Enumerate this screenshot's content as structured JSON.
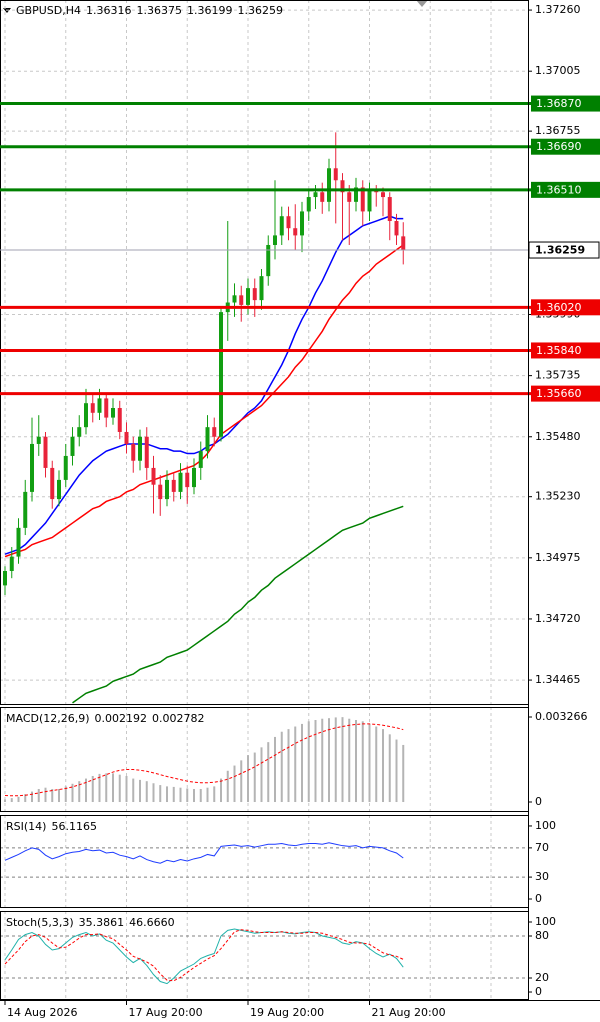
{
  "chart_data": [
    {
      "type": "candlestick",
      "symbol": "GBPUSD,H4",
      "categories": [
        "14 Aug 2026",
        null,
        null,
        null,
        null,
        null,
        null,
        null,
        null,
        null,
        null,
        null,
        null,
        null,
        null,
        null,
        null,
        null,
        "17 Aug 20:00",
        null,
        null,
        null,
        null,
        null,
        null,
        null,
        null,
        null,
        null,
        null,
        null,
        null,
        null,
        null,
        null,
        null,
        "19 Aug 20:00",
        null,
        null,
        null,
        null,
        null,
        null,
        null,
        null,
        null,
        null,
        null,
        null,
        null,
        null,
        null,
        null,
        null,
        "21 Aug 20:00",
        null,
        null,
        null,
        null,
        null
      ],
      "open": [
        1.3486,
        1.3492,
        1.3498,
        1.351,
        1.3525,
        1.3545,
        1.3548,
        1.3535,
        1.3522,
        1.353,
        1.354,
        1.3548,
        1.3552,
        1.3562,
        1.3558,
        1.3564,
        1.3556,
        1.356,
        1.355,
        1.3545,
        1.3538,
        1.3548,
        1.3535,
        1.3528,
        1.3522,
        1.353,
        1.3525,
        1.3533,
        1.3527,
        1.3535,
        1.3542,
        1.3552,
        1.3548,
        1.36,
        1.3604,
        1.3607,
        1.3603,
        1.361,
        1.3605,
        1.3615,
        1.3628,
        1.3632,
        1.364,
        1.3635,
        1.3632,
        1.3642,
        1.3648,
        1.365,
        1.3646,
        1.366,
        1.3655,
        1.365,
        1.3646,
        1.3652,
        1.3642,
        1.3651,
        1.365,
        1.3648,
        1.3638,
        1.36316
      ],
      "high": [
        1.3494,
        1.3502,
        1.3514,
        1.353,
        1.3556,
        1.3557,
        1.355,
        1.3538,
        1.3534,
        1.3545,
        1.3552,
        1.3557,
        1.3568,
        1.3566,
        1.3568,
        1.3566,
        1.3564,
        1.3563,
        1.3554,
        1.3548,
        1.3551,
        1.3552,
        1.354,
        1.3532,
        1.3534,
        1.3533,
        1.3537,
        1.3536,
        1.3539,
        1.3546,
        1.3557,
        1.3556,
        1.3602,
        1.3638,
        1.3612,
        1.3611,
        1.3614,
        1.3614,
        1.3618,
        1.3632,
        1.3655,
        1.3644,
        1.3644,
        1.3645,
        1.3646,
        1.3651,
        1.3653,
        1.3654,
        1.3664,
        1.3675,
        1.3658,
        1.3653,
        1.3656,
        1.3655,
        1.3654,
        1.3653,
        1.3652,
        1.365,
        1.3641,
        1.36375
      ],
      "low": [
        1.3482,
        1.3489,
        1.3495,
        1.3507,
        1.3521,
        1.354,
        1.3531,
        1.3518,
        1.3519,
        1.3527,
        1.3536,
        1.3544,
        1.3549,
        1.3554,
        1.3555,
        1.3552,
        1.3553,
        1.3547,
        1.3541,
        1.3533,
        1.3534,
        1.353,
        1.3516,
        1.3515,
        1.3519,
        1.3521,
        1.3522,
        1.352,
        1.3524,
        1.353,
        1.3539,
        1.3544,
        1.3546,
        1.3588,
        1.3598,
        1.3596,
        1.3599,
        1.3598,
        1.3601,
        1.3611,
        1.3622,
        1.3628,
        1.363,
        1.3626,
        1.3625,
        1.3638,
        1.3643,
        1.3641,
        1.3642,
        1.3637,
        1.363,
        1.3628,
        1.3642,
        1.3636,
        1.3638,
        1.3644,
        1.364,
        1.363,
        1.3628,
        1.36199
      ],
      "close": [
        1.3492,
        1.3498,
        1.351,
        1.3525,
        1.3545,
        1.3548,
        1.3535,
        1.3522,
        1.353,
        1.354,
        1.3548,
        1.3552,
        1.3562,
        1.3558,
        1.3564,
        1.3556,
        1.356,
        1.355,
        1.3545,
        1.3538,
        1.3548,
        1.3535,
        1.3528,
        1.3522,
        1.353,
        1.3525,
        1.3533,
        1.3527,
        1.3535,
        1.3542,
        1.3552,
        1.3548,
        1.36,
        1.3604,
        1.3607,
        1.3603,
        1.361,
        1.3605,
        1.3615,
        1.3628,
        1.3632,
        1.364,
        1.3635,
        1.3632,
        1.3642,
        1.3648,
        1.365,
        1.3646,
        1.366,
        1.3655,
        1.365,
        1.3646,
        1.3652,
        1.3642,
        1.3651,
        1.365,
        1.3648,
        1.3638,
        1.3632,
        1.36259
      ],
      "up_color": "#129e12",
      "down_color": "#e8233a",
      "series": [
        {
          "color": "#0000ff",
          "values": [
            1.3499,
            1.35,
            1.3501,
            1.3503,
            1.3506,
            1.3509,
            1.3512,
            1.3516,
            1.352,
            1.3524,
            1.3528,
            1.3532,
            1.3535,
            1.3538,
            1.354,
            1.3542,
            1.3543,
            1.3544,
            1.3545,
            1.3545,
            1.3545,
            1.3545,
            1.3544,
            1.3543,
            1.3543,
            1.3542,
            1.3542,
            1.3541,
            1.3541,
            1.3542,
            1.3544,
            1.3545,
            1.3547,
            1.3549,
            1.3552,
            1.3555,
            1.3558,
            1.356,
            1.3563,
            1.3568,
            1.3573,
            1.3578,
            1.3584,
            1.3591,
            1.3597,
            1.3602,
            1.3608,
            1.3613,
            1.3619,
            1.3625,
            1.363,
            1.3632,
            1.3634,
            1.3636,
            1.3637,
            1.3638,
            1.3639,
            1.364,
            1.3639,
            1.3639
          ]
        },
        {
          "color": "#ff0000",
          "values": [
            1.3498,
            1.3499,
            1.35,
            1.3501,
            1.3503,
            1.3504,
            1.3505,
            1.3506,
            1.3508,
            1.351,
            1.3512,
            1.3514,
            1.3516,
            1.3518,
            1.3519,
            1.3521,
            1.3522,
            1.3523,
            1.3525,
            1.3526,
            1.3528,
            1.3529,
            1.353,
            1.3531,
            1.3532,
            1.3533,
            1.3534,
            1.3535,
            1.3536,
            1.3538,
            1.3541,
            1.3545,
            1.3549,
            1.3551,
            1.3553,
            1.3555,
            1.3557,
            1.3559,
            1.3561,
            1.3564,
            1.3567,
            1.357,
            1.3573,
            1.3577,
            1.358,
            1.3584,
            1.3588,
            1.3592,
            1.3597,
            1.3601,
            1.3605,
            1.3608,
            1.3612,
            1.3615,
            1.3617,
            1.362,
            1.3622,
            1.3624,
            1.3626,
            1.3628
          ]
        },
        {
          "color": "#008000",
          "values": [
            null,
            null,
            null,
            null,
            null,
            null,
            null,
            null,
            null,
            null,
            1.3437,
            1.3439,
            1.3441,
            1.3442,
            1.3443,
            1.3444,
            1.3446,
            1.3447,
            1.3448,
            1.3449,
            1.3451,
            1.3452,
            1.3453,
            1.3454,
            1.3456,
            1.3457,
            1.3458,
            1.3459,
            1.3461,
            1.3463,
            1.3465,
            1.3467,
            1.3469,
            1.3471,
            1.3474,
            1.3476,
            1.3479,
            1.3481,
            1.3484,
            1.3486,
            1.3489,
            1.3491,
            1.3493,
            1.3495,
            1.3497,
            1.3499,
            1.3501,
            1.3503,
            1.3505,
            1.3507,
            1.3509,
            1.351,
            1.3511,
            1.3512,
            1.3514,
            1.3515,
            1.3516,
            1.3517,
            1.3518,
            1.3519
          ]
        }
      ],
      "levels": [
        {
          "value": 1.3687,
          "label": "1.36870",
          "color": "#008000"
        },
        {
          "value": 1.3669,
          "label": "1.36690",
          "color": "#008000"
        },
        {
          "value": 1.3651,
          "label": "1.36510",
          "color": "#008000"
        },
        {
          "value": 1.3602,
          "label": "1.36020",
          "color": "#ee0000"
        },
        {
          "value": 1.3584,
          "label": "1.35840",
          "color": "#ee0000"
        },
        {
          "value": 1.3566,
          "label": "1.35660",
          "color": "#ee0000"
        }
      ],
      "ylim": [
        1.34361,
        1.37302
      ],
      "yticks": [
        {
          "value": 1.3726,
          "label": "1.37260"
        },
        1.37005,
        1.36755,
        {
          "value": 1.3599,
          "label": "1.35990"
        },
        1.35735,
        {
          "value": 1.3548,
          "label": "1.35480"
        },
        {
          "value": 1.3523,
          "label": "1.35230"
        },
        1.34975,
        {
          "value": 1.3472,
          "label": "1.34720"
        },
        1.34465
      ],
      "grid": true
    },
    {
      "type": "macd",
      "title": "MACD(12,26,9)",
      "histogram": {
        "color": "#b4b4b4",
        "values": [
          0.0001,
          0.00015,
          0.0002,
          0.0003,
          0.0004,
          0.0005,
          0.00055,
          0.0005,
          0.0005,
          0.0006,
          0.0007,
          0.0008,
          0.0009,
          0.001,
          0.00108,
          0.0011,
          0.0011,
          0.00105,
          0.001,
          0.0009,
          0.00085,
          0.0008,
          0.00072,
          0.00065,
          0.0006,
          0.00058,
          0.00055,
          0.00052,
          0.0005,
          0.0005,
          0.00055,
          0.0006,
          0.0009,
          0.0012,
          0.0014,
          0.0016,
          0.0018,
          0.0019,
          0.0021,
          0.0023,
          0.0025,
          0.0027,
          0.0028,
          0.0029,
          0.003,
          0.0031,
          0.00315,
          0.0032,
          0.00322,
          0.00325,
          0.00326,
          0.0032,
          0.00315,
          0.0031,
          0.003,
          0.0029,
          0.0028,
          0.0026,
          0.0024,
          0.002192
        ]
      },
      "signal": {
        "color": "#ff0000",
        "dash": true,
        "values": [
          0.00025,
          0.00024,
          0.00024,
          0.00026,
          0.0003,
          0.00035,
          0.0004,
          0.00044,
          0.00048,
          0.00052,
          0.00058,
          0.00066,
          0.00075,
          0.00085,
          0.00095,
          0.00105,
          0.00115,
          0.00122,
          0.00125,
          0.00125,
          0.00122,
          0.00118,
          0.00112,
          0.00105,
          0.00098,
          0.00092,
          0.00086,
          0.0008,
          0.00076,
          0.00074,
          0.00074,
          0.00076,
          0.0008,
          0.00088,
          0.00098,
          0.0011,
          0.00122,
          0.00135,
          0.0015,
          0.00165,
          0.0018,
          0.00196,
          0.0021,
          0.00225,
          0.00238,
          0.0025,
          0.0026,
          0.0027,
          0.00278,
          0.00285,
          0.0029,
          0.00295,
          0.00298,
          0.003,
          0.003,
          0.00298,
          0.00295,
          0.0029,
          0.00285,
          0.002782
        ]
      },
      "ylim": [
        -0.000384,
        0.00365
      ],
      "yticks": [
        0,
        0.003266
      ]
    },
    {
      "type": "line",
      "title": "RSI(14)",
      "series": [
        {
          "color": "#1e3cff",
          "values": [
            53,
            57,
            61,
            66,
            70,
            68,
            60,
            55,
            58,
            62,
            64,
            65,
            68,
            66,
            67,
            63,
            64,
            60,
            58,
            55,
            59,
            54,
            51,
            49,
            53,
            51,
            54,
            52,
            55,
            57,
            61,
            59,
            72,
            73,
            74,
            72,
            73,
            71,
            73,
            75,
            75,
            76,
            74,
            73,
            75,
            76,
            76,
            75,
            77,
            75,
            73,
            72,
            73,
            70,
            72,
            71,
            70,
            66,
            63,
            56.1165
          ]
        }
      ],
      "levels": [
        70,
        30
      ],
      "ylim": [
        -12.3,
        115
      ],
      "yticks": [
        0,
        30,
        70,
        100
      ]
    },
    {
      "type": "line",
      "title": "Stoch(5,3,3)",
      "series": [
        {
          "color": "#20b2aa",
          "values": [
            46,
            60,
            75,
            82,
            85,
            80,
            68,
            60,
            62,
            70,
            78,
            82,
            85,
            80,
            83,
            74,
            70,
            60,
            50,
            42,
            48,
            38,
            25,
            15,
            12,
            20,
            30,
            35,
            40,
            48,
            52,
            55,
            80,
            88,
            90,
            88,
            86,
            84,
            85,
            86,
            85,
            86,
            84,
            83,
            85,
            86,
            85,
            80,
            78,
            76,
            70,
            68,
            72,
            70,
            62,
            55,
            50,
            54,
            48,
            35.3861
          ]
        },
        {
          "color": "#ff0000",
          "dash": true,
          "values": [
            40,
            50,
            60,
            72,
            80,
            82,
            78,
            70,
            63,
            64,
            70,
            77,
            82,
            82,
            83,
            79,
            76,
            68,
            60,
            51,
            47,
            43,
            37,
            26,
            17,
            16,
            21,
            28,
            35,
            41,
            47,
            52,
            62,
            74,
            86,
            89,
            88,
            86,
            85,
            85,
            85,
            86,
            85,
            84,
            84,
            85,
            85,
            84,
            81,
            78,
            75,
            71,
            70,
            70,
            68,
            62,
            56,
            53,
            51,
            46.666
          ],
          "value_labels": [
            null,
            null,
            null,
            null,
            null,
            null,
            null,
            null,
            null,
            null,
            null,
            null,
            null,
            null,
            null,
            null,
            null,
            null,
            null,
            null,
            null,
            null,
            null,
            null,
            null,
            null,
            null,
            null,
            null,
            null,
            null,
            null,
            null,
            null,
            null,
            null,
            null,
            null,
            null,
            null,
            null,
            null,
            null,
            null,
            null,
            null,
            null,
            null,
            null,
            null,
            null,
            null,
            null,
            null,
            null,
            null,
            null,
            null,
            null,
            "46.6660"
          ]
        }
      ],
      "levels": [
        80,
        20
      ],
      "ylim": [
        -11.4,
        115.7
      ],
      "yticks": [
        0,
        20,
        80,
        100
      ]
    }
  ]
}
